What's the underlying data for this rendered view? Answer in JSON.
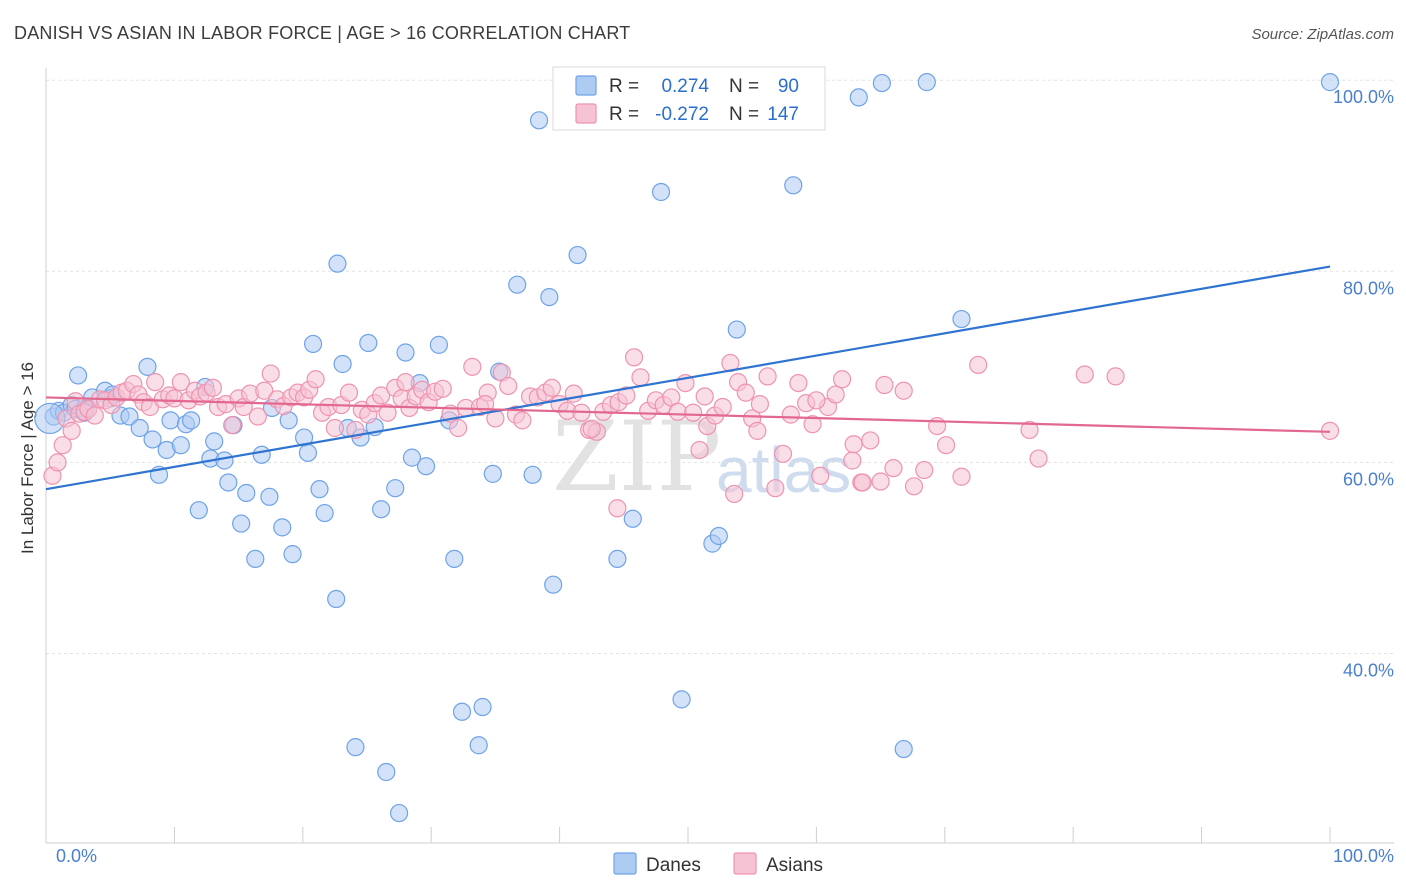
{
  "chart_data": {
    "type": "scatter",
    "title": "DANISH VS ASIAN IN LABOR FORCE | AGE > 16 CORRELATION CHART",
    "source": "Source: ZipAtlas.com",
    "xlabel": "",
    "ylabel": "In Labor Force | Age > 16",
    "xlim": [
      0,
      100
    ],
    "ylim": [
      20,
      102
    ],
    "x_tick_labels": [
      "0.0%",
      "100.0%"
    ],
    "y_ticks": [
      {
        "value": 100,
        "label": "100.0%"
      },
      {
        "value": 80,
        "label": "80.0%"
      },
      {
        "value": 60,
        "label": "60.0%"
      },
      {
        "value": 40,
        "label": "40.0%"
      }
    ],
    "legend": {
      "r_label": "R =",
      "n_label": "N =",
      "rows": [
        {
          "series": "Danes",
          "r": "0.274",
          "n": "90"
        },
        {
          "series": "Asians",
          "r": "-0.272",
          "n": "147"
        }
      ]
    },
    "watermark": {
      "zip": "ZIP",
      "atlas": "atlas"
    },
    "series": [
      {
        "name": "Danes",
        "color": "#6ea3e8",
        "fill": "#aecbf2",
        "line_color": "#2f74d0",
        "trend": {
          "x0": 0,
          "y0": 57.2,
          "x1": 100,
          "y1": 80.5
        },
        "points": [
          [
            0.6,
            64.8
          ],
          [
            1.0,
            65.4
          ],
          [
            1.4,
            65.2
          ],
          [
            2.0,
            66.0
          ],
          [
            2.3,
            65.6
          ],
          [
            2.5,
            69.1
          ],
          [
            3.0,
            65.6
          ],
          [
            3.3,
            65.6
          ],
          [
            3.6,
            66.8
          ],
          [
            4.6,
            67.5
          ],
          [
            5.0,
            66.7
          ],
          [
            5.2,
            67.1
          ],
          [
            5.8,
            64.9
          ],
          [
            6.5,
            64.8
          ],
          [
            7.3,
            63.6
          ],
          [
            7.9,
            70.0
          ],
          [
            8.3,
            62.4
          ],
          [
            8.8,
            58.7
          ],
          [
            9.4,
            61.3
          ],
          [
            9.7,
            64.4
          ],
          [
            10.5,
            61.8
          ],
          [
            10.9,
            64.0
          ],
          [
            11.3,
            64.4
          ],
          [
            11.9,
            55.0
          ],
          [
            12.4,
            67.9
          ],
          [
            12.8,
            60.4
          ],
          [
            13.1,
            62.2
          ],
          [
            13.9,
            60.2
          ],
          [
            14.2,
            57.9
          ],
          [
            14.6,
            63.9
          ],
          [
            15.2,
            53.6
          ],
          [
            15.6,
            56.8
          ],
          [
            16.3,
            49.9
          ],
          [
            16.8,
            60.8
          ],
          [
            17.4,
            56.4
          ],
          [
            17.6,
            65.7
          ],
          [
            18.4,
            53.2
          ],
          [
            18.9,
            64.4
          ],
          [
            19.2,
            50.4
          ],
          [
            20.1,
            62.6
          ],
          [
            20.4,
            61.0
          ],
          [
            20.8,
            72.4
          ],
          [
            21.3,
            57.2
          ],
          [
            21.7,
            54.7
          ],
          [
            22.6,
            45.7
          ],
          [
            22.7,
            80.8
          ],
          [
            23.1,
            70.3
          ],
          [
            23.5,
            63.6
          ],
          [
            24.1,
            30.2
          ],
          [
            24.5,
            62.6
          ],
          [
            25.1,
            72.5
          ],
          [
            25.6,
            63.7
          ],
          [
            26.1,
            55.1
          ],
          [
            26.5,
            27.6
          ],
          [
            27.2,
            57.3
          ],
          [
            27.5,
            23.3
          ],
          [
            28.0,
            71.5
          ],
          [
            28.5,
            60.5
          ],
          [
            29.1,
            68.3
          ],
          [
            29.6,
            59.6
          ],
          [
            30.6,
            72.3
          ],
          [
            31.4,
            64.4
          ],
          [
            31.8,
            49.9
          ],
          [
            32.4,
            33.9
          ],
          [
            33.7,
            30.4
          ],
          [
            34.0,
            34.4
          ],
          [
            34.8,
            58.8
          ],
          [
            35.3,
            69.5
          ],
          [
            36.7,
            78.6
          ],
          [
            37.9,
            58.7
          ],
          [
            38.4,
            95.8
          ],
          [
            39.2,
            77.3
          ],
          [
            39.5,
            47.2
          ],
          [
            41.4,
            81.7
          ],
          [
            44.5,
            49.9
          ],
          [
            45.7,
            54.1
          ],
          [
            47.9,
            88.3
          ],
          [
            49.5,
            35.2
          ],
          [
            51.9,
            51.5
          ],
          [
            52.4,
            52.3
          ],
          [
            53.8,
            73.9
          ],
          [
            58.2,
            89.0
          ],
          [
            63.3,
            98.2
          ],
          [
            65.1,
            99.7
          ],
          [
            66.8,
            30.0
          ],
          [
            68.6,
            99.8
          ],
          [
            71.3,
            75.0
          ],
          [
            100,
            99.8
          ],
          [
            0.3,
            64.6
          ],
          [
            3.0,
            65.2
          ]
        ]
      },
      {
        "name": "Asians",
        "color": "#ee93b0",
        "fill": "#f6c3d4",
        "line_color": "#e2688f",
        "trend": {
          "x0": 0,
          "y0": 66.8,
          "x1": 100,
          "y1": 63.2
        },
        "points": [
          [
            0.5,
            58.6
          ],
          [
            0.9,
            60.0
          ],
          [
            1.3,
            61.8
          ],
          [
            1.6,
            64.6
          ],
          [
            2.0,
            63.3
          ],
          [
            2.3,
            66.4
          ],
          [
            2.6,
            65.1
          ],
          [
            3.0,
            65.3
          ],
          [
            3.3,
            65.6
          ],
          [
            3.8,
            64.9
          ],
          [
            4.2,
            66.6
          ],
          [
            4.6,
            66.5
          ],
          [
            5.1,
            66.0
          ],
          [
            5.5,
            66.8
          ],
          [
            5.9,
            67.3
          ],
          [
            6.3,
            67.5
          ],
          [
            6.8,
            68.2
          ],
          [
            7.2,
            67.1
          ],
          [
            7.6,
            66.3
          ],
          [
            8.1,
            65.8
          ],
          [
            8.5,
            68.4
          ],
          [
            9.1,
            66.6
          ],
          [
            9.6,
            67.0
          ],
          [
            10.0,
            66.7
          ],
          [
            10.5,
            68.4
          ],
          [
            11.1,
            66.5
          ],
          [
            11.6,
            67.5
          ],
          [
            12.0,
            66.9
          ],
          [
            12.5,
            67.3
          ],
          [
            13.0,
            67.8
          ],
          [
            13.4,
            65.8
          ],
          [
            14.0,
            66.1
          ],
          [
            14.5,
            63.9
          ],
          [
            15.0,
            66.7
          ],
          [
            15.4,
            65.8
          ],
          [
            15.9,
            67.2
          ],
          [
            16.5,
            64.8
          ],
          [
            17.0,
            67.5
          ],
          [
            17.5,
            69.3
          ],
          [
            18.0,
            66.6
          ],
          [
            18.5,
            65.9
          ],
          [
            19.1,
            66.8
          ],
          [
            19.6,
            67.3
          ],
          [
            20.1,
            66.8
          ],
          [
            20.5,
            67.6
          ],
          [
            21.0,
            68.7
          ],
          [
            21.5,
            65.2
          ],
          [
            22.0,
            65.8
          ],
          [
            22.5,
            63.6
          ],
          [
            23.0,
            66.0
          ],
          [
            23.6,
            67.3
          ],
          [
            24.1,
            63.4
          ],
          [
            24.6,
            65.5
          ],
          [
            25.1,
            65.0
          ],
          [
            25.6,
            66.2
          ],
          [
            26.1,
            67.0
          ],
          [
            26.6,
            65.2
          ],
          [
            27.2,
            67.8
          ],
          [
            27.7,
            66.7
          ],
          [
            28.3,
            65.7
          ],
          [
            28.8,
            66.9
          ],
          [
            29.3,
            67.6
          ],
          [
            29.8,
            66.3
          ],
          [
            30.3,
            67.4
          ],
          [
            30.9,
            67.7
          ],
          [
            31.5,
            65.1
          ],
          [
            32.1,
            63.6
          ],
          [
            32.7,
            65.7
          ],
          [
            33.2,
            70.0
          ],
          [
            33.8,
            65.8
          ],
          [
            34.4,
            67.3
          ],
          [
            35.0,
            64.6
          ],
          [
            35.5,
            69.4
          ],
          [
            36.0,
            68.0
          ],
          [
            36.6,
            65.0
          ],
          [
            37.1,
            64.4
          ],
          [
            37.7,
            66.9
          ],
          [
            38.3,
            66.8
          ],
          [
            38.9,
            67.3
          ],
          [
            39.4,
            67.8
          ],
          [
            40.0,
            66.1
          ],
          [
            40.6,
            65.4
          ],
          [
            41.1,
            67.2
          ],
          [
            41.7,
            65.2
          ],
          [
            42.3,
            63.4
          ],
          [
            42.9,
            63.2
          ],
          [
            43.4,
            65.3
          ],
          [
            44.0,
            66.0
          ],
          [
            44.6,
            66.3
          ],
          [
            45.2,
            67.0
          ],
          [
            45.8,
            71.0
          ],
          [
            46.3,
            68.9
          ],
          [
            46.9,
            65.4
          ],
          [
            47.5,
            66.5
          ],
          [
            48.1,
            66.0
          ],
          [
            48.7,
            66.8
          ],
          [
            49.2,
            65.3
          ],
          [
            49.8,
            68.3
          ],
          [
            50.4,
            65.2
          ],
          [
            50.9,
            61.3
          ],
          [
            51.5,
            63.8
          ],
          [
            52.1,
            64.9
          ],
          [
            52.7,
            65.8
          ],
          [
            53.3,
            70.4
          ],
          [
            53.9,
            68.4
          ],
          [
            54.5,
            67.3
          ],
          [
            55.0,
            64.6
          ],
          [
            55.6,
            66.1
          ],
          [
            56.2,
            69.0
          ],
          [
            56.8,
            57.3
          ],
          [
            57.4,
            60.9
          ],
          [
            58.0,
            65.0
          ],
          [
            58.6,
            68.3
          ],
          [
            59.2,
            66.2
          ],
          [
            59.7,
            64.0
          ],
          [
            60.3,
            58.6
          ],
          [
            60.9,
            65.8
          ],
          [
            61.5,
            67.1
          ],
          [
            62.0,
            68.7
          ],
          [
            62.8,
            60.2
          ],
          [
            63.5,
            57.9
          ],
          [
            64.2,
            62.3
          ],
          [
            65.0,
            58.0
          ],
          [
            66.0,
            59.4
          ],
          [
            66.8,
            67.5
          ],
          [
            67.6,
            57.5
          ],
          [
            68.4,
            59.2
          ],
          [
            69.4,
            63.8
          ],
          [
            70.1,
            61.8
          ],
          [
            71.3,
            58.5
          ],
          [
            72.6,
            70.2
          ],
          [
            76.6,
            63.4
          ],
          [
            77.3,
            60.4
          ],
          [
            80.9,
            69.2
          ],
          [
            83.3,
            69.0
          ],
          [
            100,
            63.3
          ],
          [
            55.4,
            63.3
          ],
          [
            44.5,
            55.2
          ],
          [
            42.5,
            63.5
          ],
          [
            51.3,
            66.9
          ],
          [
            53.6,
            56.7
          ],
          [
            60.0,
            66.5
          ],
          [
            62.9,
            61.9
          ],
          [
            63.6,
            57.9
          ],
          [
            34.2,
            66.1
          ],
          [
            65.3,
            68.1
          ],
          [
            28.0,
            68.4
          ]
        ]
      }
    ]
  }
}
